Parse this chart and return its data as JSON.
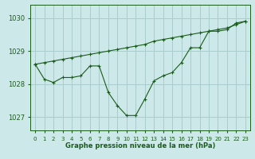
{
  "xlabel": "Graphe pression niveau de la mer (hPa)",
  "bg_color": "#cce8e8",
  "grid_color": "#aacccc",
  "line_color": "#1a5c1a",
  "ylim": [
    1026.6,
    1030.4
  ],
  "xlim": [
    -0.5,
    23.5
  ],
  "yticks": [
    1027,
    1028,
    1029,
    1030
  ],
  "xticks": [
    0,
    1,
    2,
    3,
    4,
    5,
    6,
    7,
    8,
    9,
    10,
    11,
    12,
    13,
    14,
    15,
    16,
    17,
    18,
    19,
    20,
    21,
    22,
    23
  ],
  "series1_x": [
    0,
    1,
    2,
    3,
    4,
    5,
    6,
    7,
    8,
    9,
    10,
    11,
    12,
    13,
    14,
    15,
    16,
    17,
    18,
    19,
    20,
    21,
    22,
    23
  ],
  "series1_y": [
    1028.6,
    1028.65,
    1028.7,
    1028.75,
    1028.8,
    1028.85,
    1028.9,
    1028.95,
    1029.0,
    1029.05,
    1029.1,
    1029.15,
    1029.2,
    1029.3,
    1029.35,
    1029.4,
    1029.45,
    1029.5,
    1029.55,
    1029.6,
    1029.65,
    1029.7,
    1029.8,
    1029.9
  ],
  "series2_x": [
    0,
    1,
    2,
    3,
    4,
    5,
    6,
    7,
    8,
    9,
    10,
    11,
    12,
    13,
    14,
    15,
    16,
    17,
    18,
    19,
    20,
    21,
    22,
    23
  ],
  "series2_y": [
    1028.6,
    1028.15,
    1028.05,
    1028.2,
    1028.2,
    1028.25,
    1028.55,
    1028.55,
    1027.75,
    1027.35,
    1027.05,
    1027.05,
    1027.55,
    1028.1,
    1028.25,
    1028.35,
    1028.65,
    1029.1,
    1029.1,
    1029.6,
    1029.6,
    1029.65,
    1029.85,
    1029.9
  ],
  "ytick_fontsize": 6,
  "xtick_fontsize": 5,
  "xlabel_fontsize": 6,
  "lw": 0.8,
  "ms": 2.5
}
